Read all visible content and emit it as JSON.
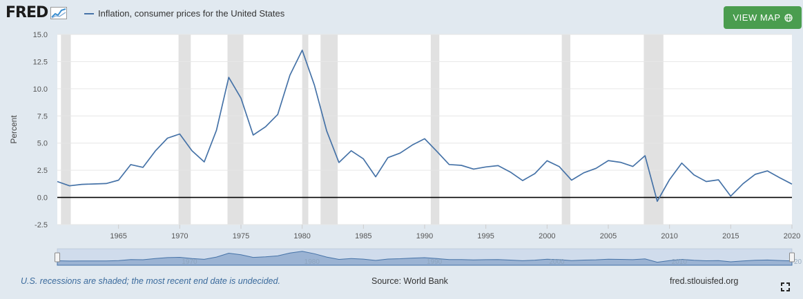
{
  "header": {
    "logo_text": "FRED",
    "legend_label": "Inflation, consumer prices for the United States",
    "view_map_label": "VIEW MAP",
    "line_color": "#4572a7",
    "button_color": "#4a9d4f"
  },
  "chart_data": {
    "type": "line",
    "title": "Inflation, consumer prices for the United States",
    "ylabel": "Percent",
    "xlabel": "",
    "ylim": [
      -2.5,
      15.0
    ],
    "xlim": [
      1960,
      2020
    ],
    "yticks": [
      "15.0",
      "12.5",
      "10.0",
      "7.5",
      "5.0",
      "2.5",
      "0.0",
      "-2.5"
    ],
    "xticks": [
      "1965",
      "1970",
      "1975",
      "1980",
      "1985",
      "1990",
      "1995",
      "2000",
      "2005",
      "2010",
      "2015",
      "2020"
    ],
    "navigator_ticks": [
      "1970",
      "1980",
      "1990",
      "2000",
      "2010",
      "20"
    ],
    "recessions": [
      [
        1960.3,
        1961.1
      ],
      [
        1969.9,
        1970.9
      ],
      [
        1973.9,
        1975.2
      ],
      [
        1980.0,
        1980.5
      ],
      [
        1981.5,
        1982.9
      ],
      [
        1990.5,
        1991.2
      ],
      [
        2001.2,
        2001.9
      ],
      [
        2007.9,
        2009.5
      ]
    ],
    "series": [
      {
        "name": "Inflation, consumer prices for the United States",
        "x": [
          1960,
          1961,
          1962,
          1963,
          1964,
          1965,
          1966,
          1967,
          1968,
          1969,
          1970,
          1971,
          1972,
          1973,
          1974,
          1975,
          1976,
          1977,
          1978,
          1979,
          1980,
          1981,
          1982,
          1983,
          1984,
          1985,
          1986,
          1987,
          1988,
          1989,
          1990,
          1991,
          1992,
          1993,
          1994,
          1995,
          1996,
          1997,
          1998,
          1999,
          2000,
          2001,
          2002,
          2003,
          2004,
          2005,
          2006,
          2007,
          2008,
          2009,
          2010,
          2011,
          2012,
          2013,
          2014,
          2015,
          2016,
          2017,
          2018,
          2019,
          2020
        ],
        "values": [
          1.46,
          1.07,
          1.2,
          1.24,
          1.28,
          1.59,
          3.02,
          2.77,
          4.27,
          5.46,
          5.84,
          4.29,
          3.27,
          6.18,
          11.05,
          9.14,
          5.74,
          6.5,
          7.63,
          11.25,
          13.55,
          10.33,
          6.13,
          3.21,
          4.3,
          3.55,
          1.9,
          3.66,
          4.08,
          4.83,
          5.4,
          4.24,
          3.03,
          2.95,
          2.61,
          2.81,
          2.93,
          2.34,
          1.55,
          2.19,
          3.38,
          2.83,
          1.59,
          2.27,
          2.68,
          3.39,
          3.23,
          2.85,
          3.84,
          -0.36,
          1.64,
          3.16,
          2.07,
          1.46,
          1.62,
          0.12,
          1.26,
          2.13,
          2.44,
          1.81,
          1.23
        ]
      }
    ]
  },
  "footer": {
    "recession_note": "U.S. recessions are shaded; the most recent end date is undecided.",
    "source": "Source: World Bank",
    "site": "fred.stlouisfed.org"
  }
}
